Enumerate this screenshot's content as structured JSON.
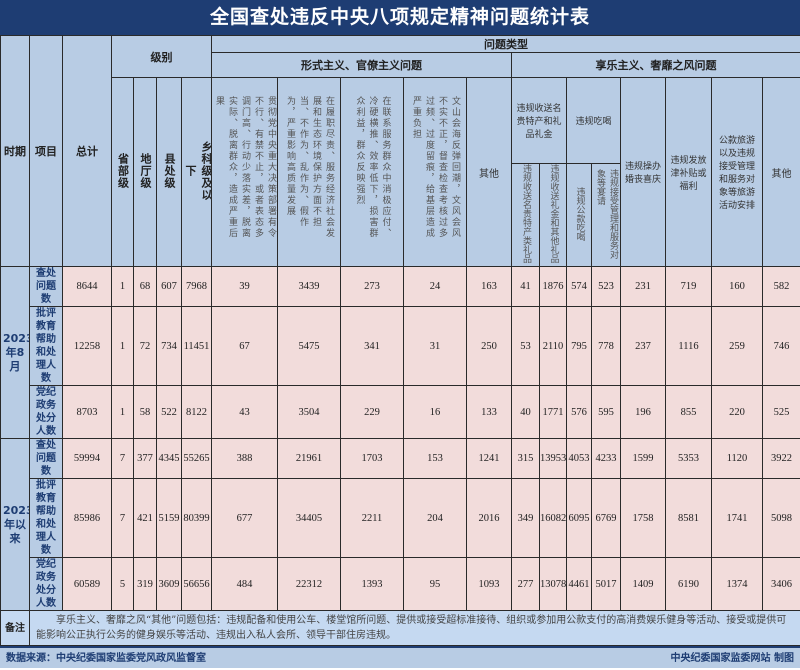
{
  "title": "全国查处违反中央八项规定精神问题统计表",
  "headers": {
    "period": "时期",
    "item": "项目",
    "total": "总计",
    "level": "级别",
    "levels": [
      "省部级",
      "地厅级",
      "县处级",
      "乡科级及以下"
    ],
    "problem_type": "问题类型",
    "formalism": "形式主义、官僚主义问题",
    "hedonism": "享乐主义、奢靡之风问题",
    "formalism_cols": [
      "贯彻党中央重大决策部署有令不行、有禁不止，或者表态多调门高、行动少落实差，脱离实际、脱离群众，造成严重后果",
      "在履职尽责、服务经济社会发展和生态环境保护方面不担当、不作为、乱作为、假作为，严重影响高质量发展",
      "在联系服务群众中消极应付、冷硬横推、效率低下，损害群众利益，群众反映强烈",
      "文山会海反弹回潮，文风会风不实不正，督查检查考核过多过频、过度留痕，给基层造成严重负担",
      "其他"
    ],
    "gift_group": "违规收送名贵特产和礼品礼金",
    "gift_cols": [
      "违规收送名贵特产类礼品",
      "违规收送礼金和其他礼品"
    ],
    "dining_group": "违规吃喝",
    "dining_cols": [
      "违规公款吃喝",
      "违规接受管理和服务对象等宴请"
    ],
    "other_hedonism_cols": [
      "违规操办婚丧喜庆",
      "违规发放津补贴或福利",
      "公款旅游以及违规接受管理和服务对象等旅游活动安排",
      "其他"
    ]
  },
  "periods": [
    {
      "label": "2023年8月",
      "rows": [
        {
          "item": "查处问题数",
          "values": [
            "8644",
            "1",
            "68",
            "607",
            "7968",
            "39",
            "3439",
            "273",
            "24",
            "163",
            "41",
            "1876",
            "574",
            "523",
            "231",
            "719",
            "160",
            "582"
          ]
        },
        {
          "item": "批评教育帮助和处理人数",
          "values": [
            "12258",
            "1",
            "72",
            "734",
            "11451",
            "67",
            "5475",
            "341",
            "31",
            "250",
            "53",
            "2110",
            "795",
            "778",
            "237",
            "1116",
            "259",
            "746"
          ]
        },
        {
          "item": "党纪政务处分人数",
          "values": [
            "8703",
            "1",
            "58",
            "522",
            "8122",
            "43",
            "3504",
            "229",
            "16",
            "133",
            "40",
            "1771",
            "576",
            "595",
            "196",
            "855",
            "220",
            "525"
          ]
        }
      ]
    },
    {
      "label": "2023年以来",
      "rows": [
        {
          "item": "查处问题数",
          "values": [
            "59994",
            "7",
            "377",
            "4345",
            "55265",
            "388",
            "21961",
            "1703",
            "153",
            "1241",
            "315",
            "13953",
            "4053",
            "4233",
            "1599",
            "5353",
            "1120",
            "3922"
          ]
        },
        {
          "item": "批评教育帮助和处理人数",
          "values": [
            "85986",
            "7",
            "421",
            "5159",
            "80399",
            "677",
            "34405",
            "2211",
            "204",
            "2016",
            "349",
            "16082",
            "6095",
            "6769",
            "1758",
            "8581",
            "1741",
            "5098"
          ]
        },
        {
          "item": "党纪政务处分人数",
          "values": [
            "60589",
            "5",
            "319",
            "3609",
            "56656",
            "484",
            "22312",
            "1393",
            "95",
            "1093",
            "277",
            "13078",
            "4461",
            "5017",
            "1409",
            "6190",
            "1374",
            "3406"
          ]
        }
      ]
    }
  ],
  "notes": {
    "label": "备注",
    "text": "　　享乐主义、奢靡之风“其他”问题包括：违规配备和使用公车、楼堂馆所问题、提供或接受超标准接待、组织或参加用公款支付的高消费娱乐健身等活动、接受或提供可能影响公正执行公务的健身娱乐等活动、违规出入私人会所、领导干部住房违规。"
  },
  "footer": {
    "source": "数据来源：中央纪委国家监委党风政风监督室",
    "credit": "中央纪委国家监委网站 制图"
  }
}
